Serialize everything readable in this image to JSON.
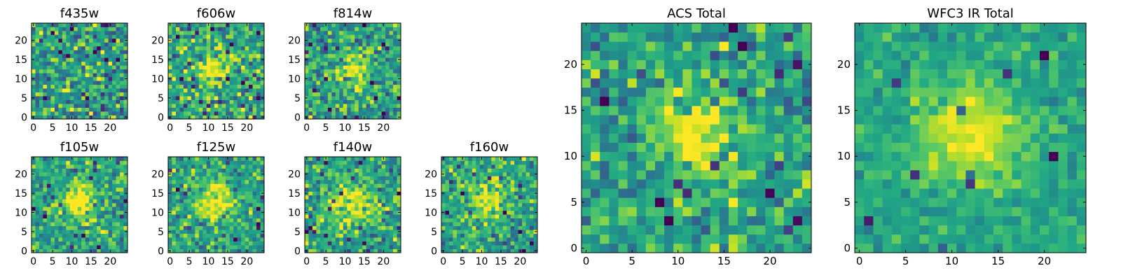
{
  "colormap": "viridis",
  "chart_data": [
    {
      "type": "heatmap",
      "title": "f435w",
      "grid_size": 25,
      "xlim": [
        0,
        24
      ],
      "ylim": [
        0,
        24
      ],
      "x_ticks": [
        0,
        5,
        10,
        15,
        20
      ],
      "y_ticks": [
        0,
        5,
        10,
        15,
        20
      ],
      "grid": false,
      "source_size": 0.5,
      "noise": 0.55,
      "seed": 11
    },
    {
      "type": "heatmap",
      "title": "f606w",
      "grid_size": 25,
      "xlim": [
        0,
        24
      ],
      "ylim": [
        0,
        24
      ],
      "x_ticks": [
        0,
        5,
        10,
        15,
        20
      ],
      "y_ticks": [
        0,
        5,
        10,
        15,
        20
      ],
      "grid": false,
      "source_size": 3,
      "noise": 0.55,
      "seed": 23
    },
    {
      "type": "heatmap",
      "title": "f814w",
      "grid_size": 25,
      "xlim": [
        0,
        24
      ],
      "ylim": [
        0,
        24
      ],
      "x_ticks": [
        0,
        5,
        10,
        15,
        20
      ],
      "y_ticks": [
        0,
        5,
        10,
        15,
        20
      ],
      "grid": false,
      "source_size": 3,
      "noise": 0.5,
      "seed": 37
    },
    {
      "type": "heatmap",
      "title": "f105w",
      "grid_size": 25,
      "xlim": [
        0,
        24
      ],
      "ylim": [
        0,
        24
      ],
      "x_ticks": [
        0,
        5,
        10,
        15,
        20
      ],
      "y_ticks": [
        0,
        5,
        10,
        15,
        20
      ],
      "grid": false,
      "source_size": 3.5,
      "noise": 0.45,
      "seed": 41
    },
    {
      "type": "heatmap",
      "title": "f125w",
      "grid_size": 25,
      "xlim": [
        0,
        24
      ],
      "ylim": [
        0,
        24
      ],
      "x_ticks": [
        0,
        5,
        10,
        15,
        20
      ],
      "y_ticks": [
        0,
        5,
        10,
        15,
        20
      ],
      "grid": false,
      "source_size": 3.5,
      "noise": 0.45,
      "seed": 53
    },
    {
      "type": "heatmap",
      "title": "f140w",
      "grid_size": 25,
      "xlim": [
        0,
        24
      ],
      "ylim": [
        0,
        24
      ],
      "x_ticks": [
        0,
        5,
        10,
        15,
        20
      ],
      "y_ticks": [
        0,
        5,
        10,
        15,
        20
      ],
      "grid": false,
      "source_size": 3.5,
      "noise": 0.45,
      "seed": 67
    },
    {
      "type": "heatmap",
      "title": "f160w",
      "grid_size": 25,
      "xlim": [
        0,
        24
      ],
      "ylim": [
        0,
        24
      ],
      "x_ticks": [
        0,
        5,
        10,
        15,
        20
      ],
      "y_ticks": [
        0,
        5,
        10,
        15,
        20
      ],
      "grid": false,
      "source_size": 3.5,
      "noise": 0.45,
      "seed": 71
    },
    {
      "type": "heatmap",
      "title": "ACS Total",
      "grid_size": 25,
      "xlim": [
        0,
        24
      ],
      "ylim": [
        0,
        24
      ],
      "x_ticks": [
        0,
        5,
        10,
        15,
        20
      ],
      "y_ticks": [
        0,
        5,
        10,
        15,
        20
      ],
      "grid": false,
      "source_size": 3,
      "noise": 0.4,
      "seed": 83
    },
    {
      "type": "heatmap",
      "title": "WFC3 IR Total",
      "grid_size": 25,
      "xlim": [
        0,
        24
      ],
      "ylim": [
        0,
        24
      ],
      "x_ticks": [
        0,
        5,
        10,
        15,
        20
      ],
      "y_ticks": [
        0,
        5,
        10,
        15,
        20
      ],
      "grid": false,
      "source_size": 4,
      "noise": 0.22,
      "seed": 97
    }
  ]
}
